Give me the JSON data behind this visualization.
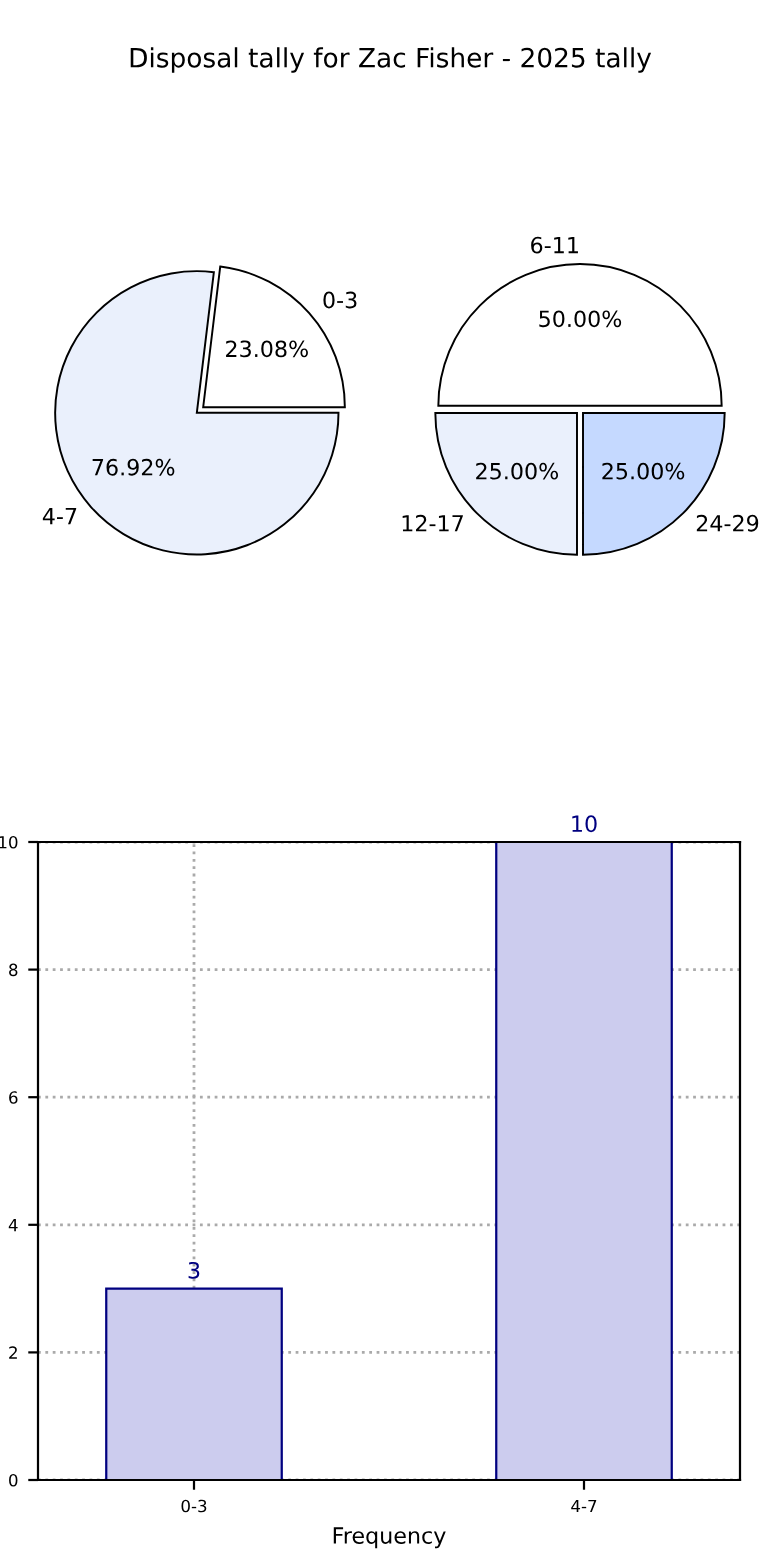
{
  "chart_data": [
    {
      "type": "pie",
      "title": "Disposal tally for Zac Fisher - 2025 tally",
      "categories": [
        "0-3",
        "4-7"
      ],
      "values": [
        23.08,
        76.92
      ],
      "colors": [
        "#ffffff",
        "#eaf0fc"
      ],
      "value_labels": [
        "23.08%",
        "76.92%"
      ]
    },
    {
      "type": "pie",
      "categories": [
        "6-11",
        "12-17",
        "24-29"
      ],
      "values": [
        50,
        25,
        25
      ],
      "colors": [
        "#ffffff",
        "#eaf0fc",
        "#c5d9ff"
      ],
      "value_labels": [
        "50.00%",
        "25.00%",
        "25.00%"
      ]
    },
    {
      "type": "bar",
      "categories": [
        "0-3",
        "4-7"
      ],
      "values": [
        3,
        10
      ],
      "color": "#ccccee",
      "xlabel": "Frequency",
      "ylim": [
        0,
        10
      ],
      "yticks": [
        0,
        2,
        4,
        6,
        8,
        10
      ],
      "grid": true,
      "data_labels": true
    }
  ]
}
